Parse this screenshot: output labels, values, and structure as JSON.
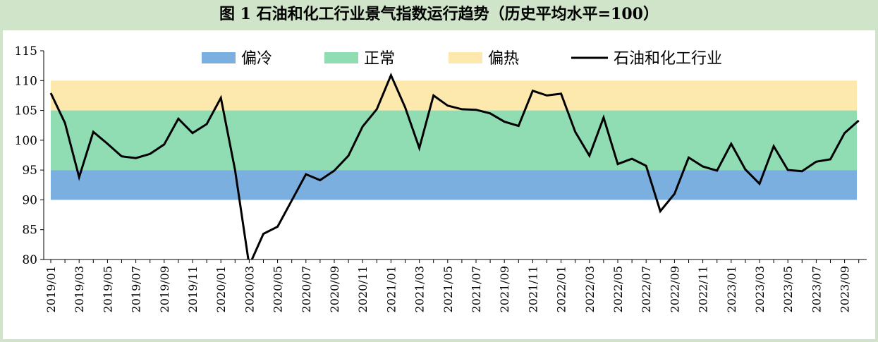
{
  "title": "图 1  石油和化工行业景气指数运行趋势（历史平均水平=100）",
  "chart_data": {
    "type": "line",
    "ylim": [
      80,
      115
    ],
    "yticks": [
      80,
      85,
      90,
      95,
      100,
      105,
      110,
      115
    ],
    "bands": [
      {
        "name": "偏冷",
        "from": 90,
        "to": 95,
        "color": "#7aafdf"
      },
      {
        "name": "正常",
        "from": 95,
        "to": 105,
        "color": "#91ddb3"
      },
      {
        "name": "偏热",
        "from": 105,
        "to": 110,
        "color": "#fde9ad"
      }
    ],
    "x": [
      "2019/01",
      "2019/02",
      "2019/03",
      "2019/04",
      "2019/05",
      "2019/06",
      "2019/07",
      "2019/08",
      "2019/09",
      "2019/10",
      "2019/11",
      "2019/12",
      "2020/01",
      "2020/02",
      "2020/03",
      "2020/04",
      "2020/05",
      "2020/06",
      "2020/07",
      "2020/08",
      "2020/09",
      "2020/10",
      "2020/11",
      "2020/12",
      "2021/01",
      "2021/02",
      "2021/03",
      "2021/04",
      "2021/05",
      "2021/06",
      "2021/07",
      "2021/08",
      "2021/09",
      "2021/10",
      "2021/11",
      "2021/12",
      "2022/01",
      "2022/02",
      "2022/03",
      "2022/04",
      "2022/05",
      "2022/06",
      "2022/07",
      "2022/08",
      "2022/09",
      "2022/10",
      "2022/11",
      "2022/12",
      "2023/01",
      "2023/02",
      "2023/03",
      "2023/04",
      "2023/05",
      "2023/06",
      "2023/07",
      "2023/08",
      "2023/09",
      "2023/10"
    ],
    "xtick_labels": [
      "2019/01",
      "2019/03",
      "2019/05",
      "2019/07",
      "2019/09",
      "2019/11",
      "2020/01",
      "2020/03",
      "2020/05",
      "2020/07",
      "2020/09",
      "2020/11",
      "2021/01",
      "2021/03",
      "2021/05",
      "2021/07",
      "2021/09",
      "2021/11",
      "2022/01",
      "2022/03",
      "2022/05",
      "2022/07",
      "2022/09",
      "2022/11",
      "2023/01",
      "2023/03",
      "2023/05",
      "2023/07",
      "2023/09"
    ],
    "series": [
      {
        "name": "石油和化工行业",
        "color": "#000000",
        "values": [
          107.9,
          102.9,
          93.8,
          101.4,
          99.4,
          97.3,
          97.0,
          97.7,
          99.3,
          103.6,
          101.2,
          102.7,
          107.1,
          95.0,
          79.0,
          84.3,
          85.5,
          89.9,
          94.3,
          93.3,
          94.9,
          97.4,
          102.3,
          105.2,
          110.9,
          105.5,
          98.7,
          107.5,
          105.8,
          105.2,
          105.1,
          104.5,
          103.1,
          102.4,
          108.3,
          107.5,
          107.8,
          101.4,
          97.4,
          103.8,
          96.0,
          96.9,
          95.7,
          88.1,
          91.0,
          97.1,
          95.6,
          94.9,
          99.4,
          95.1,
          92.7,
          99.0,
          95.0,
          94.8,
          96.4,
          96.8,
          101.2,
          103.3
        ]
      }
    ],
    "legend_position": "top"
  }
}
